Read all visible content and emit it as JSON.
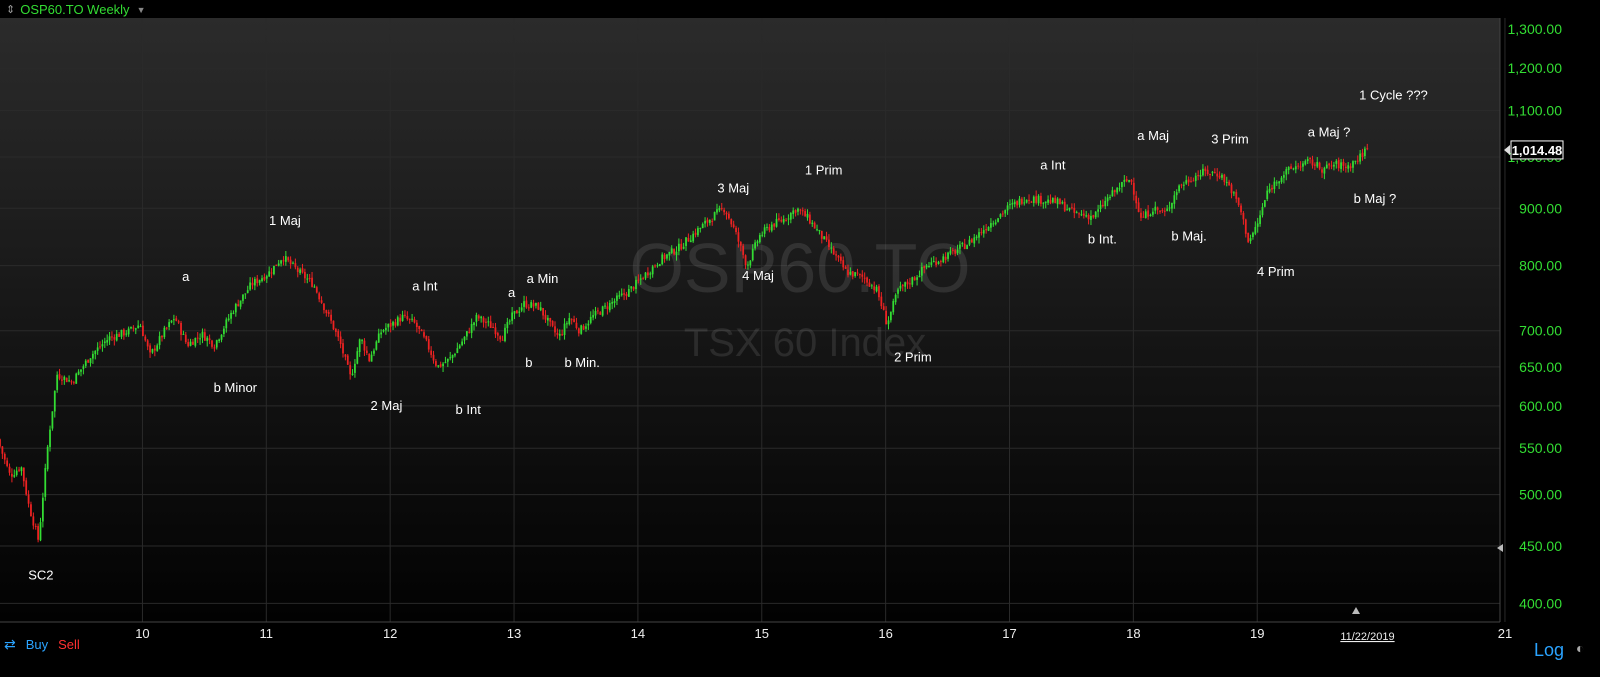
{
  "header": {
    "symbol_label": "OSP60.TO Weekly"
  },
  "footer": {
    "buy_label": "Buy",
    "sell_label": "Sell",
    "scale_mode": "Log"
  },
  "colors": {
    "up": "#33dd33",
    "down": "#ee2222",
    "background_top": "#2b2b2b",
    "background_bottom": "#000000",
    "axis_text": "#33dd33",
    "grid": "#2a2a2a"
  },
  "chart_data": {
    "type": "candlestick",
    "title": "OSP60.TO",
    "subtitle": "TSX 60 Index",
    "interval": "Weekly",
    "y_scale": "log",
    "ylim": [
      385,
      1330
    ],
    "y_ticks": [
      400,
      450,
      500,
      550,
      600,
      650,
      700,
      800,
      900,
      1000,
      1100,
      1200,
      1300
    ],
    "y_tick_labels": [
      "400.00",
      "450.00",
      "500.00",
      "550.00",
      "600.00",
      "650.00",
      "700.00",
      "800.00",
      "900.00",
      "1,000.00",
      "1,100.00",
      "1,200.00",
      "1,300.00"
    ],
    "x_ticks": [
      10,
      11,
      12,
      13,
      14,
      15,
      16,
      17,
      18,
      19,
      21
    ],
    "x_tick_labels": [
      "10",
      "11",
      "12",
      "13",
      "14",
      "15",
      "16",
      "17",
      "18",
      "19",
      "21"
    ],
    "xlim": [
      2008.85,
      2020.96
    ],
    "date_label": "11/22/2019",
    "date_label_x": 2019.89,
    "last_price": 1014.48,
    "last_price_label": "1,014.48",
    "grid": true,
    "path": [
      [
        2008.85,
        560
      ],
      [
        2008.95,
        520
      ],
      [
        2009.04,
        530
      ],
      [
        2009.1,
        490
      ],
      [
        2009.18,
        455
      ],
      [
        2009.26,
        560
      ],
      [
        2009.33,
        640
      ],
      [
        2009.45,
        630
      ],
      [
        2009.6,
        665
      ],
      [
        2009.75,
        690
      ],
      [
        2009.92,
        700
      ],
      [
        2010.0,
        710
      ],
      [
        2010.08,
        665
      ],
      [
        2010.2,
        700
      ],
      [
        2010.28,
        720
      ],
      [
        2010.38,
        680
      ],
      [
        2010.5,
        695
      ],
      [
        2010.6,
        680
      ],
      [
        2010.75,
        730
      ],
      [
        2010.9,
        770
      ],
      [
        2011.05,
        790
      ],
      [
        2011.15,
        815
      ],
      [
        2011.28,
        790
      ],
      [
        2011.4,
        770
      ],
      [
        2011.55,
        710
      ],
      [
        2011.62,
        680
      ],
      [
        2011.7,
        635
      ],
      [
        2011.78,
        690
      ],
      [
        2011.85,
        660
      ],
      [
        2011.95,
        700
      ],
      [
        2012.12,
        720
      ],
      [
        2012.22,
        710
      ],
      [
        2012.32,
        680
      ],
      [
        2012.4,
        650
      ],
      [
        2012.5,
        660
      ],
      [
        2012.62,
        690
      ],
      [
        2012.72,
        720
      ],
      [
        2012.85,
        705
      ],
      [
        2012.92,
        690
      ],
      [
        2013.0,
        720
      ],
      [
        2013.1,
        740
      ],
      [
        2013.22,
        735
      ],
      [
        2013.32,
        705
      ],
      [
        2013.38,
        690
      ],
      [
        2013.47,
        720
      ],
      [
        2013.55,
        700
      ],
      [
        2013.65,
        720
      ],
      [
        2013.8,
        740
      ],
      [
        2013.95,
        760
      ],
      [
        2014.05,
        780
      ],
      [
        2014.2,
        810
      ],
      [
        2014.35,
        830
      ],
      [
        2014.5,
        860
      ],
      [
        2014.65,
        890
      ],
      [
        2014.72,
        900
      ],
      [
        2014.8,
        860
      ],
      [
        2014.9,
        800
      ],
      [
        2015.0,
        850
      ],
      [
        2015.1,
        870
      ],
      [
        2015.2,
        880
      ],
      [
        2015.3,
        900
      ],
      [
        2015.4,
        880
      ],
      [
        2015.5,
        850
      ],
      [
        2015.6,
        820
      ],
      [
        2015.7,
        790
      ],
      [
        2015.85,
        780
      ],
      [
        2015.95,
        760
      ],
      [
        2016.03,
        710
      ],
      [
        2016.12,
        760
      ],
      [
        2016.25,
        780
      ],
      [
        2016.35,
        800
      ],
      [
        2016.45,
        810
      ],
      [
        2016.55,
        820
      ],
      [
        2016.7,
        840
      ],
      [
        2016.85,
        870
      ],
      [
        2017.0,
        900
      ],
      [
        2017.15,
        920
      ],
      [
        2017.3,
        915
      ],
      [
        2017.42,
        910
      ],
      [
        2017.55,
        890
      ],
      [
        2017.7,
        885
      ],
      [
        2017.82,
        920
      ],
      [
        2017.95,
        950
      ],
      [
        2018.0,
        955
      ],
      [
        2018.08,
        880
      ],
      [
        2018.18,
        900
      ],
      [
        2018.28,
        890
      ],
      [
        2018.38,
        940
      ],
      [
        2018.5,
        960
      ],
      [
        2018.6,
        970
      ],
      [
        2018.72,
        965
      ],
      [
        2018.8,
        940
      ],
      [
        2018.88,
        900
      ],
      [
        2018.95,
        840
      ],
      [
        2019.02,
        870
      ],
      [
        2019.1,
        930
      ],
      [
        2019.2,
        960
      ],
      [
        2019.32,
        980
      ],
      [
        2019.45,
        990
      ],
      [
        2019.55,
        975
      ],
      [
        2019.65,
        985
      ],
      [
        2019.75,
        980
      ],
      [
        2019.85,
        1000
      ],
      [
        2019.89,
        1014.48
      ]
    ],
    "annotations": [
      {
        "text": "SC2",
        "x": 2009.18,
        "y": 420
      },
      {
        "text": "a",
        "x": 2010.35,
        "y": 775
      },
      {
        "text": "b Minor",
        "x": 2010.75,
        "y": 617
      },
      {
        "text": "1 Maj",
        "x": 2011.15,
        "y": 870
      },
      {
        "text": "2 Maj",
        "x": 2011.97,
        "y": 595
      },
      {
        "text": "a Int",
        "x": 2012.28,
        "y": 760
      },
      {
        "text": "b Int",
        "x": 2012.63,
        "y": 590
      },
      {
        "text": "a",
        "x": 2012.98,
        "y": 750
      },
      {
        "text": "a Min",
        "x": 2013.23,
        "y": 772
      },
      {
        "text": "b",
        "x": 2013.12,
        "y": 650
      },
      {
        "text": "b Min.",
        "x": 2013.55,
        "y": 650
      },
      {
        "text": "3 Maj",
        "x": 2014.77,
        "y": 930
      },
      {
        "text": "4 Maj",
        "x": 2014.97,
        "y": 777
      },
      {
        "text": "1 Prim",
        "x": 2015.5,
        "y": 965
      },
      {
        "text": "2 Prim",
        "x": 2016.22,
        "y": 657
      },
      {
        "text": "a Int",
        "x": 2017.35,
        "y": 975
      },
      {
        "text": "b Int.",
        "x": 2017.75,
        "y": 837
      },
      {
        "text": "a Maj",
        "x": 2018.16,
        "y": 1035
      },
      {
        "text": "b Maj.",
        "x": 2018.45,
        "y": 842
      },
      {
        "text": "3 Prim",
        "x": 2018.78,
        "y": 1028
      },
      {
        "text": "4 Prim",
        "x": 2019.15,
        "y": 783
      },
      {
        "text": "a Maj ?",
        "x": 2019.58,
        "y": 1043
      },
      {
        "text": "b Maj ?",
        "x": 2019.95,
        "y": 910
      },
      {
        "text": "1 Cycle ???",
        "x": 2020.1,
        "y": 1125
      }
    ]
  }
}
